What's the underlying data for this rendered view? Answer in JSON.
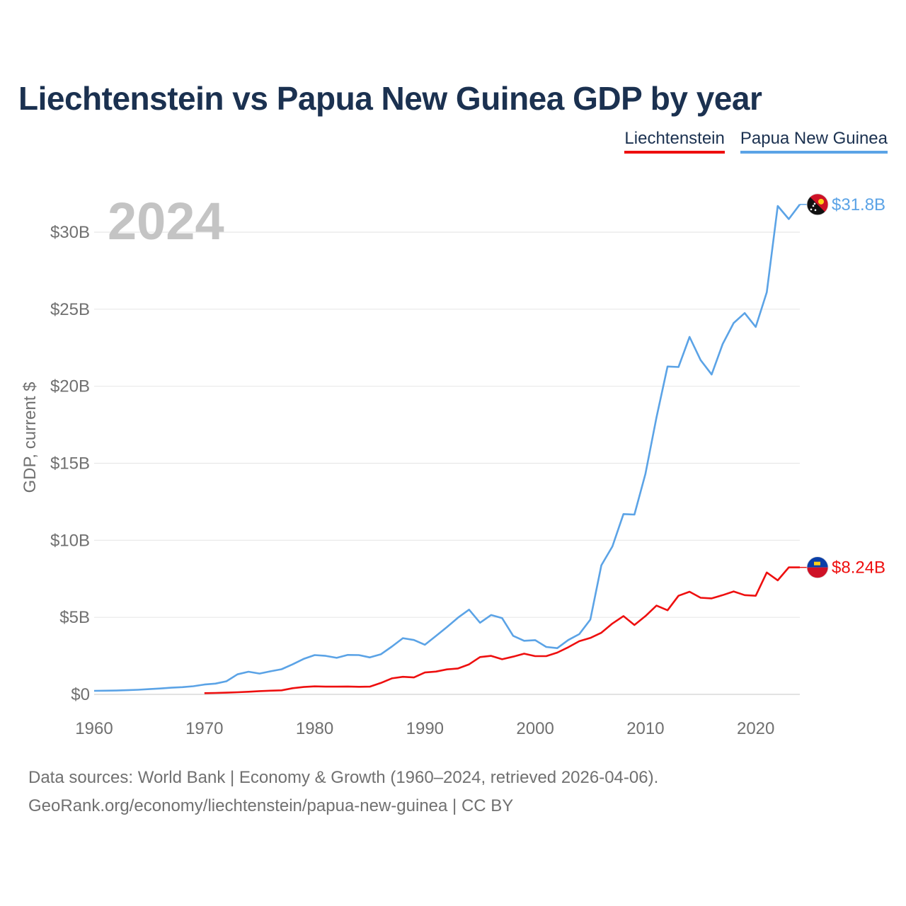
{
  "title": "Liechtenstein vs Papua New Guinea GDP by year",
  "legend": [
    {
      "label": "Liechtenstein",
      "color": "#ee0f0f"
    },
    {
      "label": "Papua New Guinea",
      "color": "#5ba3e6"
    }
  ],
  "year_label": "2024",
  "footer": {
    "line1": "Data sources: World Bank | Economy & Growth (1960–2024, retrieved 2026-04-06).",
    "line2": "GeoRank.org/economy/liechtenstein/papua-new-guinea | CC BY"
  },
  "chart_data": {
    "type": "line",
    "title": "Liechtenstein vs Papua New Guinea GDP by year",
    "xlabel": "",
    "ylabel": "GDP, current $",
    "xlim": [
      1960,
      2024
    ],
    "ylim": [
      0,
      32
    ],
    "x_ticks": [
      1960,
      1970,
      1980,
      1990,
      2000,
      2010,
      2020
    ],
    "y_ticks": [
      0,
      5,
      10,
      15,
      20,
      25,
      30
    ],
    "y_tick_labels": [
      "$0",
      "$5B",
      "$10B",
      "$15B",
      "$20B",
      "$25B",
      "$30B"
    ],
    "series": [
      {
        "name": "Papua New Guinea",
        "color": "#5ba3e6",
        "end_label": "$31.8B",
        "x": [
          1960,
          1961,
          1962,
          1963,
          1964,
          1965,
          1966,
          1967,
          1968,
          1969,
          1970,
          1971,
          1972,
          1973,
          1974,
          1975,
          1976,
          1977,
          1978,
          1979,
          1980,
          1981,
          1982,
          1983,
          1984,
          1985,
          1986,
          1987,
          1988,
          1989,
          1990,
          1991,
          1992,
          1993,
          1994,
          1995,
          1996,
          1997,
          1998,
          1999,
          2000,
          2001,
          2002,
          2003,
          2004,
          2005,
          2006,
          2007,
          2008,
          2009,
          2010,
          2011,
          2012,
          2013,
          2014,
          2015,
          2016,
          2017,
          2018,
          2019,
          2020,
          2021,
          2022,
          2023,
          2024
        ],
        "values": [
          0.23,
          0.24,
          0.25,
          0.27,
          0.3,
          0.34,
          0.38,
          0.43,
          0.47,
          0.53,
          0.64,
          0.7,
          0.85,
          1.3,
          1.47,
          1.35,
          1.5,
          1.63,
          1.95,
          2.3,
          2.55,
          2.5,
          2.37,
          2.56,
          2.55,
          2.4,
          2.6,
          3.1,
          3.65,
          3.53,
          3.22,
          3.79,
          4.37,
          4.98,
          5.5,
          4.65,
          5.15,
          4.95,
          3.8,
          3.48,
          3.52,
          3.08,
          3.0,
          3.53,
          3.91,
          4.85,
          8.38,
          9.6,
          11.7,
          11.67,
          14.32,
          17.98,
          21.28,
          21.25,
          23.2,
          21.7,
          20.76,
          22.74,
          24.1,
          24.75,
          23.85,
          26.1,
          31.7,
          30.85,
          31.8
        ]
      },
      {
        "name": "Liechtenstein",
        "color": "#ee0f0f",
        "end_label": "$8.24B",
        "x": [
          1970,
          1971,
          1972,
          1973,
          1974,
          1975,
          1976,
          1977,
          1978,
          1979,
          1980,
          1981,
          1982,
          1983,
          1984,
          1985,
          1986,
          1987,
          1988,
          1989,
          1990,
          1991,
          1992,
          1993,
          1994,
          1995,
          1996,
          1997,
          1998,
          1999,
          2000,
          2001,
          2002,
          2003,
          2004,
          2005,
          2006,
          2007,
          2008,
          2009,
          2010,
          2011,
          2012,
          2013,
          2014,
          2015,
          2016,
          2017,
          2018,
          2019,
          2020,
          2021,
          2022,
          2023,
          2024
        ],
        "values": [
          0.08,
          0.09,
          0.11,
          0.14,
          0.17,
          0.21,
          0.24,
          0.26,
          0.4,
          0.48,
          0.52,
          0.5,
          0.5,
          0.51,
          0.49,
          0.5,
          0.74,
          1.04,
          1.14,
          1.1,
          1.42,
          1.48,
          1.62,
          1.68,
          1.95,
          2.42,
          2.5,
          2.28,
          2.45,
          2.64,
          2.48,
          2.48,
          2.71,
          3.06,
          3.45,
          3.66,
          4.0,
          4.6,
          5.08,
          4.5,
          5.08,
          5.76,
          5.46,
          6.4,
          6.66,
          6.27,
          6.23,
          6.44,
          6.68,
          6.44,
          6.4,
          7.91,
          7.4,
          8.24,
          8.24
        ]
      }
    ]
  }
}
